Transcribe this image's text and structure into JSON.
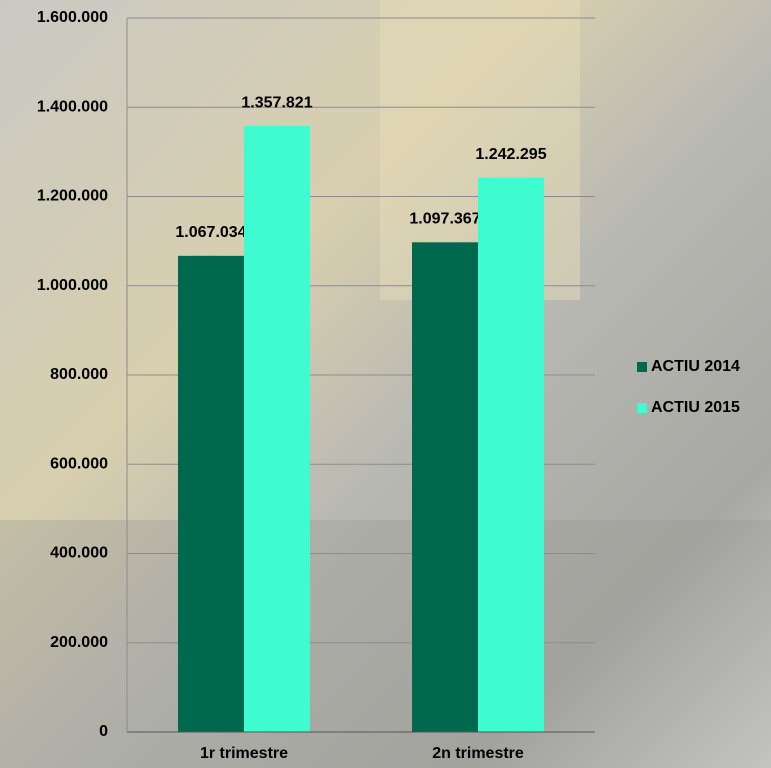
{
  "chart_data": {
    "type": "bar",
    "categories": [
      "1r trimestre",
      "2n trimestre"
    ],
    "series": [
      {
        "name": "ACTIU 2014",
        "color": "#00694d",
        "values": [
          1067034,
          1097367
        ],
        "value_labels": [
          "1.067.034",
          "1.097.367"
        ]
      },
      {
        "name": "ACTIU 2015",
        "color": "#3ffcd0",
        "values": [
          1357821,
          1242295
        ],
        "value_labels": [
          "1.357.821",
          "1.242.295"
        ]
      }
    ],
    "ylim": [
      0,
      1600000
    ],
    "yticks": [
      0,
      {
        "value": 200000,
        "label": "200.000"
      },
      {
        "value": 400000,
        "label": "400.000"
      },
      {
        "value": 600000,
        "label": "600.000"
      },
      {
        "value": 800000,
        "label": "800.000"
      },
      {
        "value": 1000000,
        "label": "1.000.000"
      },
      {
        "value": 1200000,
        "label": "1.200.000"
      },
      {
        "value": 1400000,
        "label": "1.400.000"
      },
      {
        "value": 1600000,
        "label": "1.600.000"
      }
    ],
    "grid": true,
    "legend": "right"
  }
}
